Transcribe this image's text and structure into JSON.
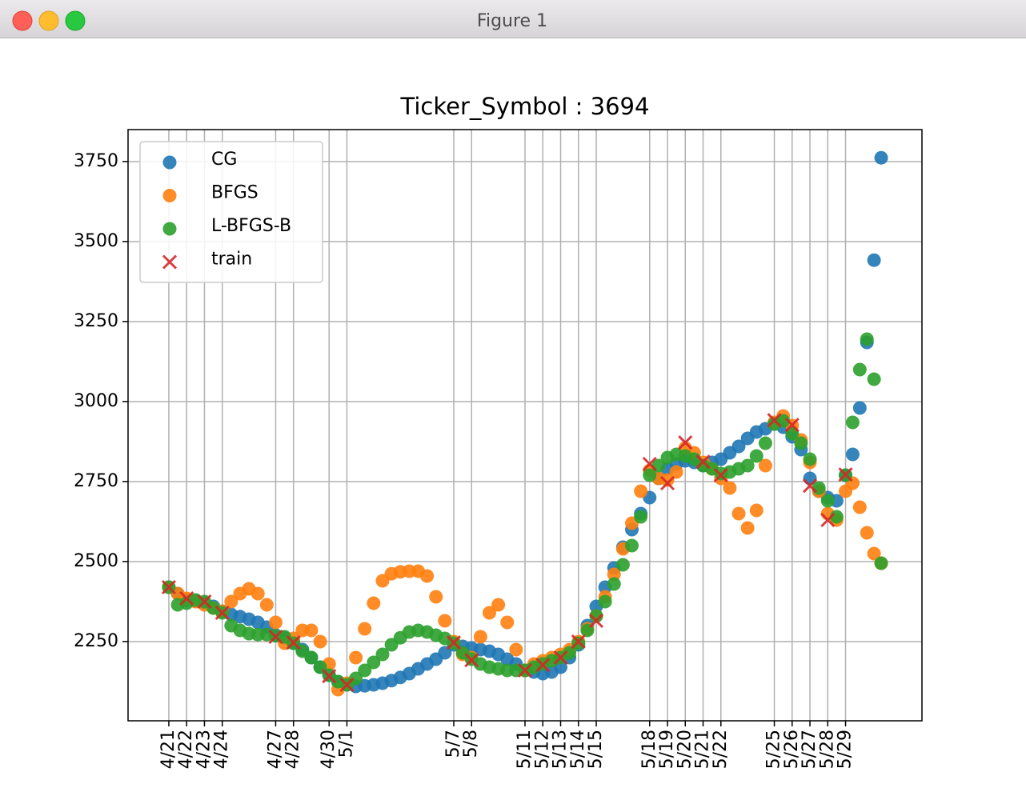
{
  "window_title": "Figure 1",
  "chart_data": {
    "type": "scatter",
    "title": "Ticker_Symbol : 3694",
    "xlim": [
      -2.29,
      42.29
    ],
    "ylim": [
      2002.5,
      3850
    ],
    "yticks": [
      2250,
      2500,
      2750,
      3000,
      3250,
      3500,
      3750
    ],
    "xticks": [
      {
        "value": 0,
        "label": "4/21"
      },
      {
        "value": 1,
        "label": "4/22"
      },
      {
        "value": 2,
        "label": "4/23"
      },
      {
        "value": 3,
        "label": "4/24"
      },
      {
        "value": 6,
        "label": "4/27"
      },
      {
        "value": 7,
        "label": "4/28"
      },
      {
        "value": 9,
        "label": "4/30"
      },
      {
        "value": 10,
        "label": "5/1"
      },
      {
        "value": 16,
        "label": "5/7"
      },
      {
        "value": 17,
        "label": "5/8"
      },
      {
        "value": 20,
        "label": "5/11"
      },
      {
        "value": 21,
        "label": "5/12"
      },
      {
        "value": 22,
        "label": "5/13"
      },
      {
        "value": 23,
        "label": "5/14"
      },
      {
        "value": 24,
        "label": "5/15"
      },
      {
        "value": 27,
        "label": "5/18"
      },
      {
        "value": 28,
        "label": "5/19"
      },
      {
        "value": 29,
        "label": "5/20"
      },
      {
        "value": 30,
        "label": "5/21"
      },
      {
        "value": 31,
        "label": "5/22"
      },
      {
        "value": 34,
        "label": "5/25"
      },
      {
        "value": 35,
        "label": "5/26"
      },
      {
        "value": 36,
        "label": "5/27"
      },
      {
        "value": 37,
        "label": "5/28"
      },
      {
        "value": 38,
        "label": "5/29"
      }
    ],
    "grid": true,
    "legend": "upper left",
    "x": [
      0,
      0.5,
      1,
      1.5,
      2,
      2.5,
      3,
      3.5,
      4,
      4.5,
      5,
      5.5,
      6,
      6.5,
      7,
      7.5,
      8,
      8.5,
      9,
      9.5,
      10,
      10.5,
      11,
      11.5,
      12,
      12.5,
      13,
      13.5,
      14,
      14.5,
      15,
      15.5,
      16,
      16.5,
      17,
      17.5,
      18,
      18.5,
      19,
      19.5,
      20,
      20.5,
      21,
      21.5,
      22,
      22.5,
      23,
      23.5,
      24,
      24.5,
      25,
      25.5,
      26,
      26.5,
      27,
      27.5,
      28,
      28.5,
      29,
      29.5,
      30,
      30.5,
      31,
      31.5,
      32,
      32.5,
      33,
      33.5,
      34,
      34.5,
      35,
      35.5,
      36,
      36.5,
      37,
      37.5,
      38,
      38.4,
      38.8,
      39.2,
      39.6,
      40
    ],
    "series": [
      {
        "name": "CG",
        "color": "#1f77b4",
        "marker": "o",
        "values": [
          2420,
          2400,
          2380,
          2378,
          2370,
          2360,
          2345,
          2335,
          2328,
          2320,
          2310,
          2295,
          2270,
          2262,
          2245,
          2225,
          2200,
          2170,
          2145,
          2125,
          2115,
          2110,
          2112,
          2115,
          2120,
          2128,
          2138,
          2150,
          2165,
          2180,
          2195,
          2215,
          2240,
          2235,
          2230,
          2225,
          2220,
          2210,
          2195,
          2180,
          2160,
          2155,
          2150,
          2155,
          2170,
          2200,
          2240,
          2300,
          2360,
          2420,
          2480,
          2545,
          2600,
          2650,
          2700,
          2760,
          2790,
          2805,
          2815,
          2810,
          2800,
          2810,
          2820,
          2840,
          2860,
          2885,
          2905,
          2915,
          2930,
          2920,
          2890,
          2850,
          2760,
          2720,
          2700,
          2690,
          2770,
          2835,
          2980,
          3185,
          3442,
          3762
        ]
      },
      {
        "name": "BFGS",
        "color": "#ff7f0e",
        "marker": "o",
        "values": [
          2420,
          2400,
          2385,
          2375,
          2365,
          2355,
          2345,
          2375,
          2400,
          2415,
          2400,
          2365,
          2310,
          2245,
          2260,
          2285,
          2285,
          2250,
          2180,
          2100,
          2120,
          2200,
          2290,
          2370,
          2440,
          2462,
          2468,
          2470,
          2470,
          2455,
          2390,
          2315,
          2250,
          2210,
          2200,
          2265,
          2340,
          2365,
          2310,
          2225,
          2160,
          2180,
          2190,
          2200,
          2210,
          2225,
          2250,
          2290,
          2330,
          2390,
          2460,
          2540,
          2620,
          2720,
          2785,
          2760,
          2755,
          2780,
          2855,
          2840,
          2810,
          2790,
          2760,
          2730,
          2650,
          2605,
          2660,
          2800,
          2935,
          2955,
          2925,
          2880,
          2810,
          2720,
          2650,
          2630,
          2720,
          2745,
          2670,
          2590,
          2525,
          2495
        ]
      },
      {
        "name": "L-BFGS-B",
        "color": "#2ca02c",
        "marker": "o",
        "values": [
          2420,
          2365,
          2370,
          2380,
          2375,
          2355,
          2340,
          2300,
          2285,
          2275,
          2272,
          2272,
          2268,
          2265,
          2245,
          2220,
          2200,
          2170,
          2145,
          2125,
          2115,
          2135,
          2160,
          2185,
          2210,
          2240,
          2262,
          2280,
          2285,
          2280,
          2270,
          2260,
          2245,
          2215,
          2195,
          2180,
          2170,
          2165,
          2160,
          2160,
          2160,
          2170,
          2180,
          2190,
          2200,
          2215,
          2245,
          2285,
          2330,
          2375,
          2430,
          2490,
          2550,
          2640,
          2770,
          2800,
          2825,
          2835,
          2830,
          2820,
          2800,
          2790,
          2775,
          2780,
          2790,
          2800,
          2830,
          2870,
          2930,
          2940,
          2900,
          2870,
          2820,
          2730,
          2690,
          2640,
          2770,
          2935,
          3100,
          3195,
          3070,
          2495
        ]
      },
      {
        "name": "train",
        "color": "#d62728",
        "marker": "x",
        "x": [
          0,
          1,
          2,
          3,
          6,
          7,
          9,
          10,
          16,
          17,
          20,
          21,
          22,
          23,
          24,
          27,
          28,
          29,
          30,
          31,
          34,
          35,
          36,
          37,
          38
        ],
        "values": [
          2420,
          2385,
          2375,
          2340,
          2265,
          2247,
          2142,
          2115,
          2247,
          2192,
          2160,
          2177,
          2200,
          2250,
          2315,
          2805,
          2745,
          2872,
          2812,
          2770,
          2942,
          2927,
          2737,
          2630,
          2772
        ]
      }
    ]
  }
}
